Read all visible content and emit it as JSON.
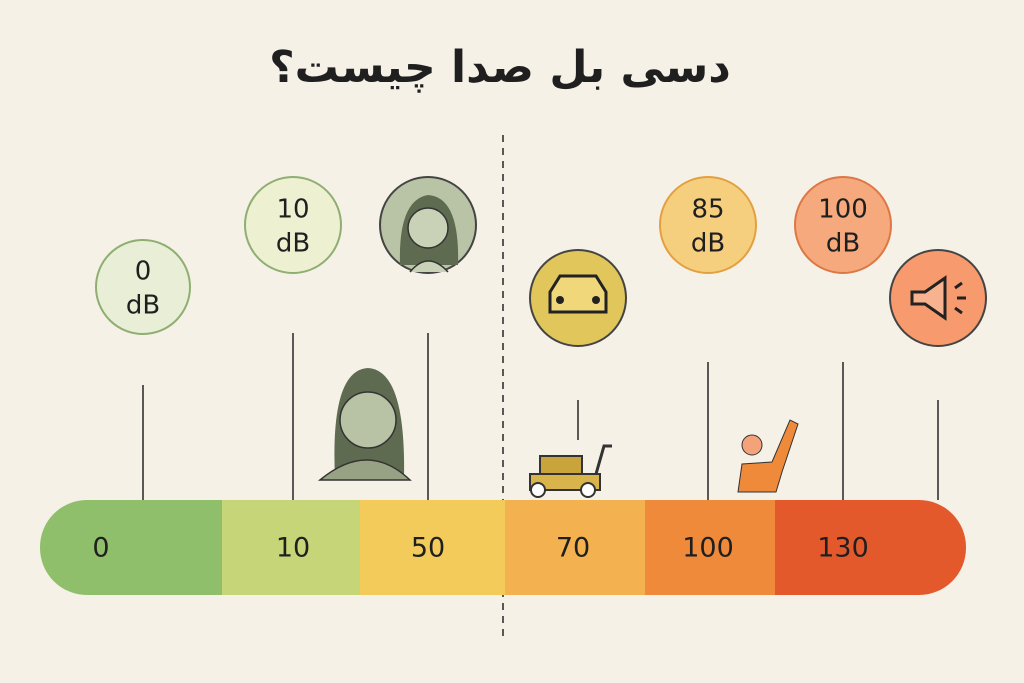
{
  "title": "دسی بل صدا چیست؟",
  "scale": [
    "0",
    "10",
    "50",
    "70",
    "100",
    "130"
  ],
  "bubbles": [
    {
      "value": "0",
      "unit": "dB"
    },
    {
      "value": "10",
      "unit": "dB"
    },
    {
      "value": "85",
      "unit": "dB"
    },
    {
      "value": "100",
      "unit": "dB"
    }
  ]
}
